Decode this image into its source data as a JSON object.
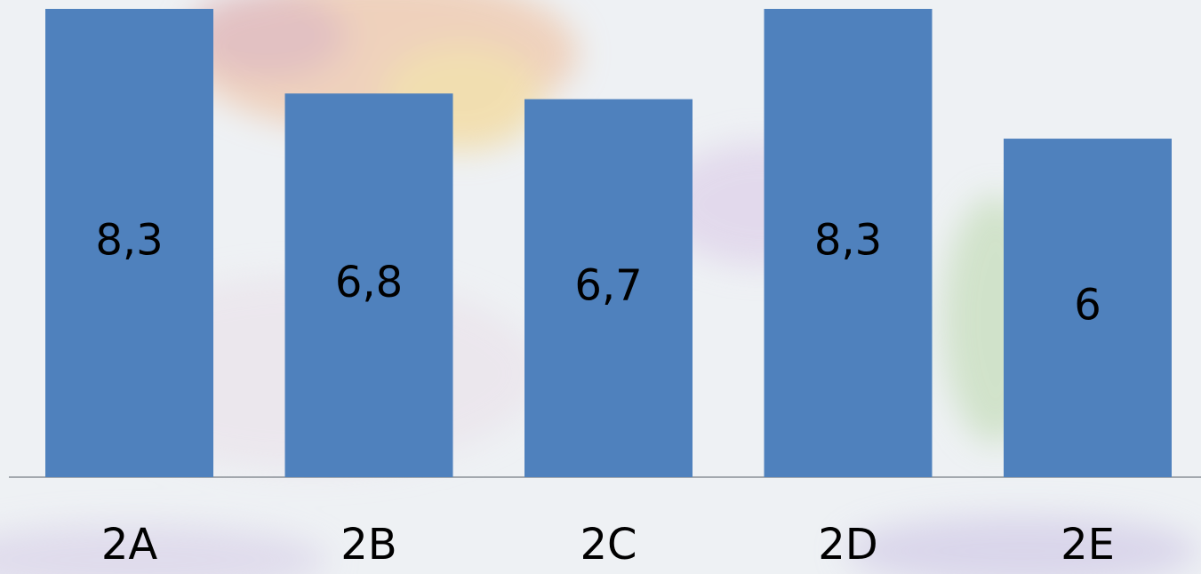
{
  "chart_data": {
    "type": "bar",
    "categories": [
      "2A",
      "2B",
      "2C",
      "2D",
      "2E"
    ],
    "values": [
      8.3,
      6.8,
      6.7,
      8.3,
      6
    ],
    "value_labels": [
      "8,3",
      "6,8",
      "6,7",
      "8,3",
      "6"
    ],
    "color": "#4f81bd"
  }
}
